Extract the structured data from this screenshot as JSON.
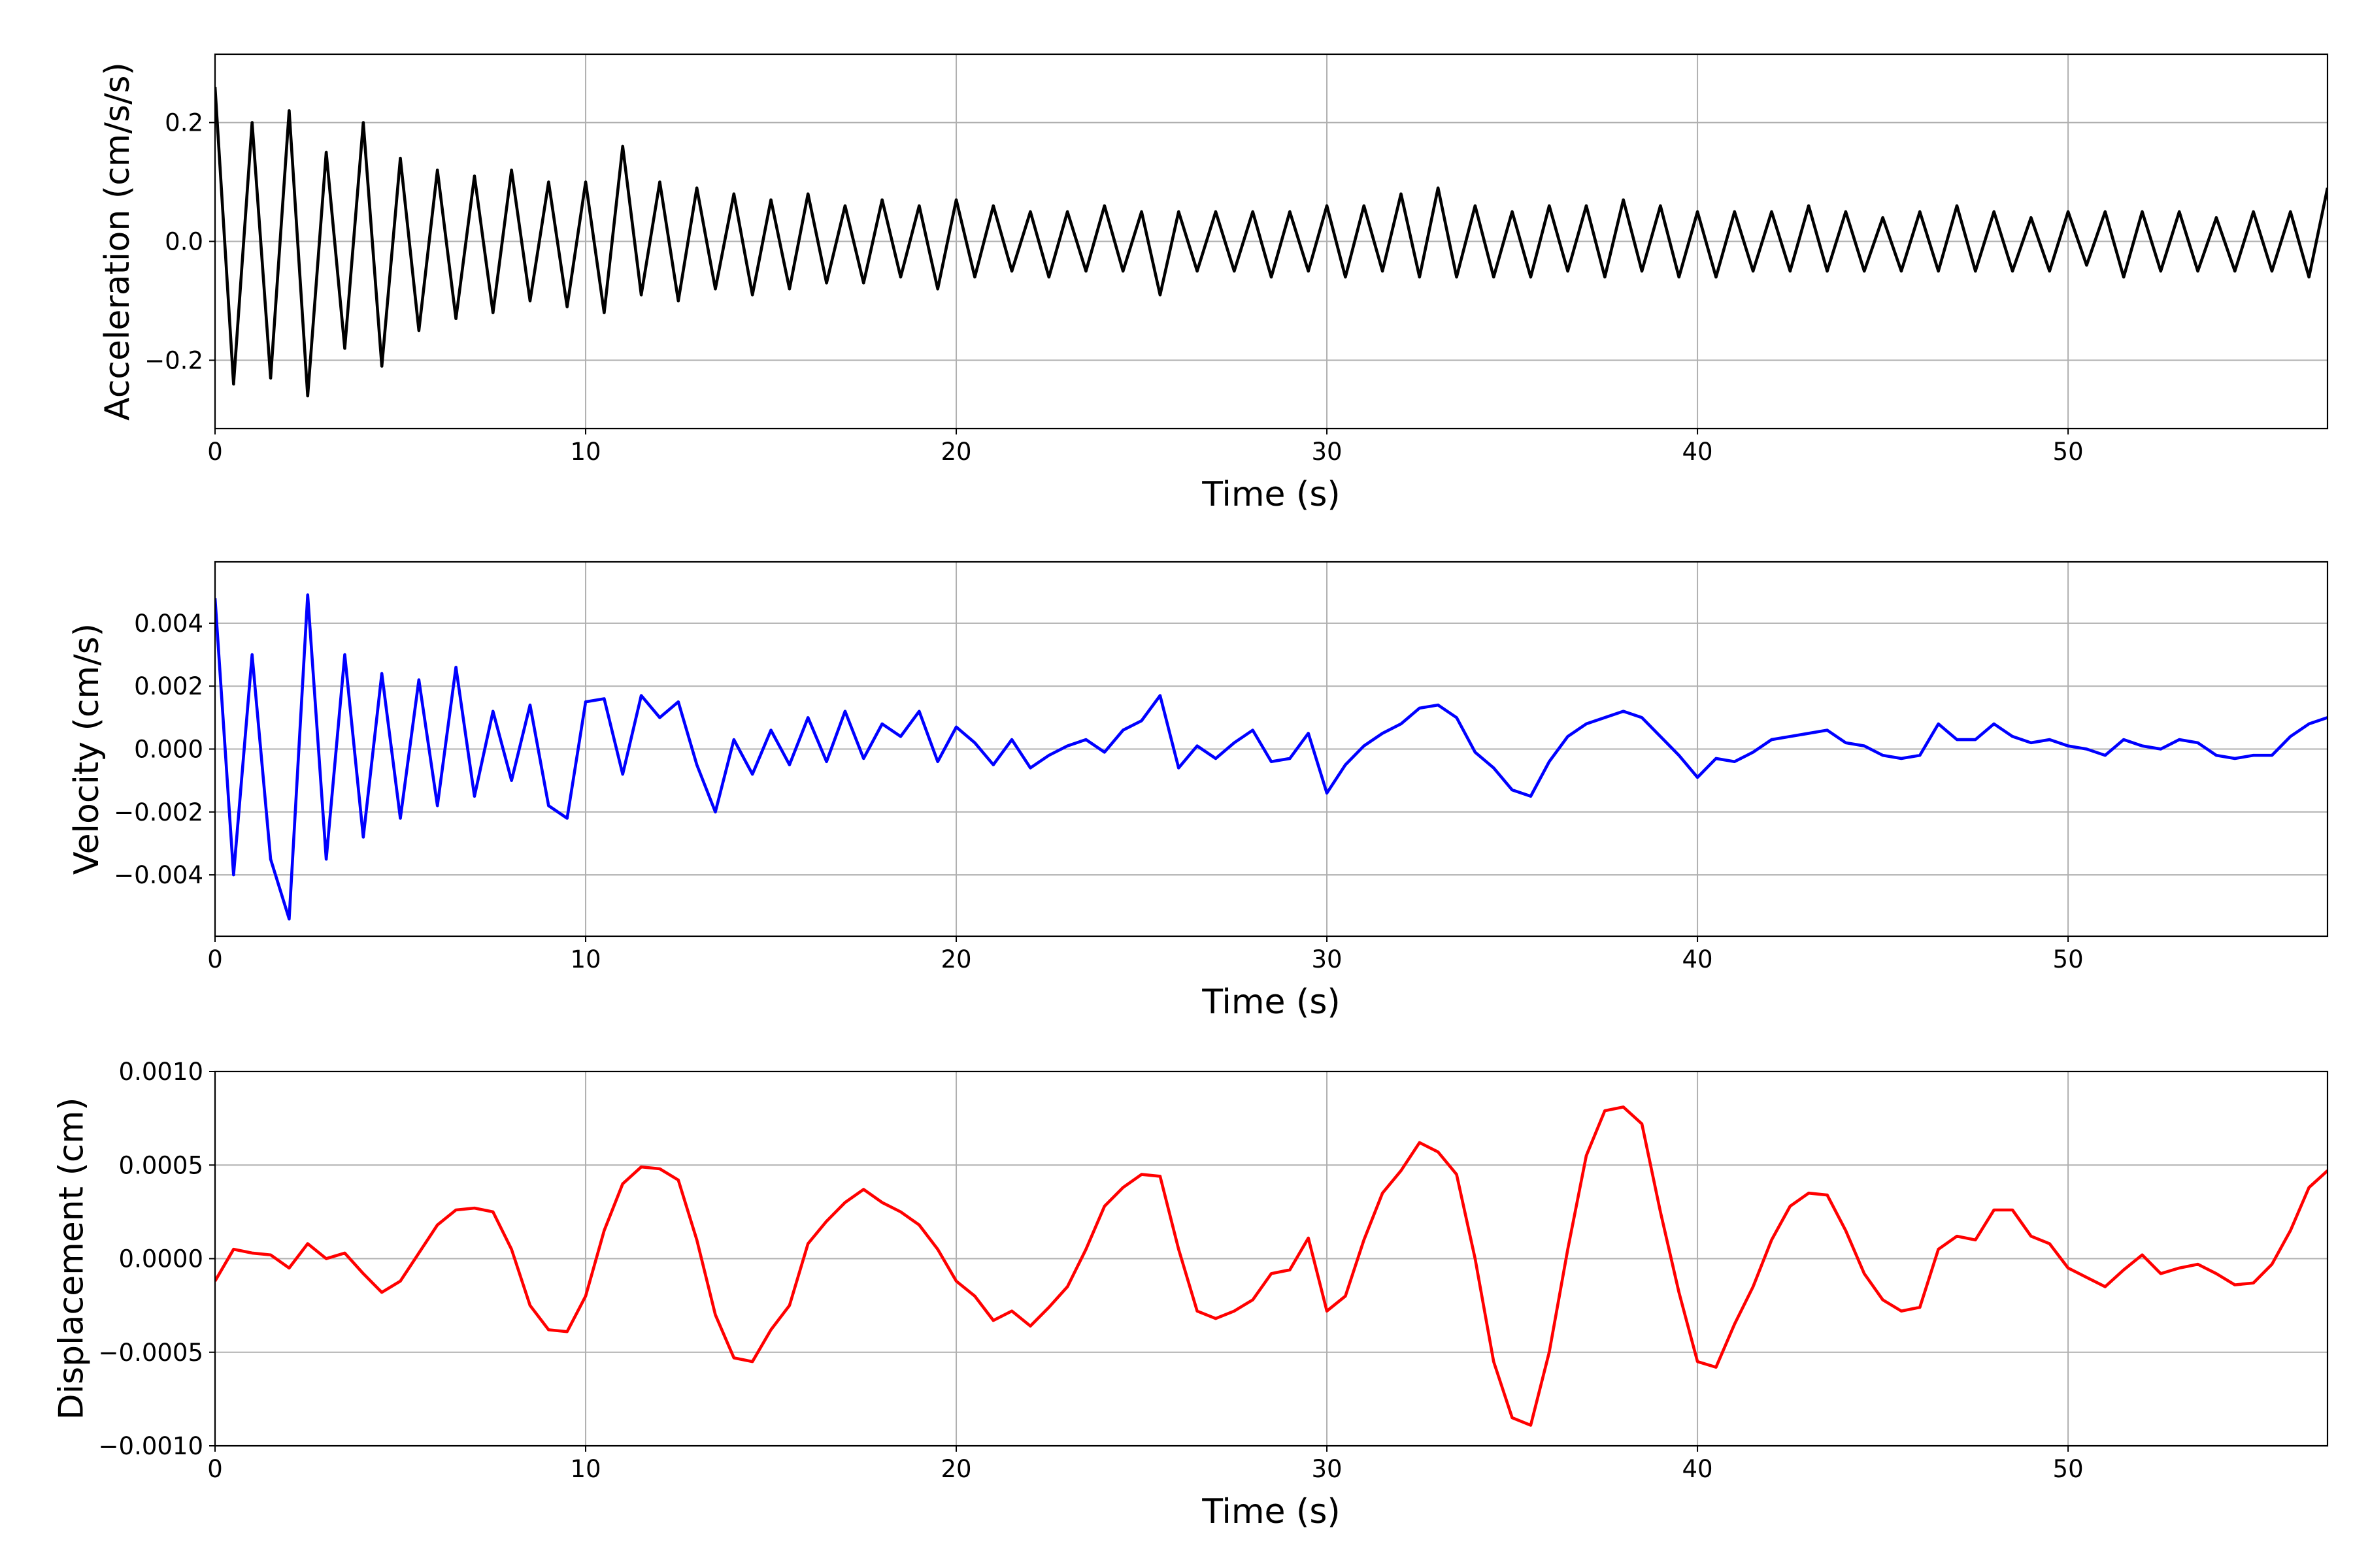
{
  "chart_data": [
    {
      "type": "line",
      "xlabel": "Time (s)",
      "ylabel": "Acceleration (cm/s/s)",
      "grid": true,
      "xlim": [
        0,
        57
      ],
      "xticks": [
        0,
        10,
        20,
        30,
        40,
        50
      ],
      "ylim": [
        -0.315,
        0.315
      ],
      "yticks": [
        {
          "value": -0.2,
          "label": "−0.2"
        },
        {
          "value": 0,
          "label": "0.0"
        },
        {
          "value": 0.2,
          "label": "0.2"
        }
      ],
      "x": [
        0,
        0.5,
        1,
        1.5,
        2,
        2.5,
        3,
        3.5,
        4,
        4.5,
        5,
        5.5,
        6,
        6.5,
        7,
        7.5,
        8,
        8.5,
        9,
        9.5,
        10,
        10.5,
        11,
        11.5,
        12,
        12.5,
        13,
        13.5,
        14,
        14.5,
        15,
        15.5,
        16,
        16.5,
        17,
        17.5,
        18,
        18.5,
        19,
        19.5,
        20,
        20.5,
        21,
        21.5,
        22,
        22.5,
        23,
        23.5,
        24,
        24.5,
        25,
        25.5,
        26,
        26.5,
        27,
        27.5,
        28,
        28.5,
        29,
        29.5,
        30,
        30.5,
        31,
        31.5,
        32,
        32.5,
        33,
        33.5,
        34,
        34.5,
        35,
        35.5,
        36,
        36.5,
        37,
        37.5,
        38,
        38.5,
        39,
        39.5,
        40,
        40.5,
        41,
        41.5,
        42,
        42.5,
        43,
        43.5,
        44,
        44.5,
        45,
        45.5,
        46,
        46.5,
        47,
        47.5,
        48,
        48.5,
        49,
        49.5,
        50,
        50.5,
        51,
        51.5,
        52,
        52.5,
        53,
        53.5,
        54,
        54.5,
        55,
        55.5,
        56,
        56.5,
        57
      ],
      "series": [
        {
          "color": "#000000",
          "values": [
            0.26,
            -0.24,
            0.2,
            -0.23,
            0.22,
            -0.26,
            0.15,
            -0.18,
            0.2,
            -0.21,
            0.14,
            -0.15,
            0.12,
            -0.13,
            0.11,
            -0.12,
            0.12,
            -0.1,
            0.1,
            -0.11,
            0.1,
            -0.12,
            0.16,
            -0.09,
            0.1,
            -0.1,
            0.09,
            -0.08,
            0.08,
            -0.09,
            0.07,
            -0.08,
            0.08,
            -0.07,
            0.06,
            -0.07,
            0.07,
            -0.06,
            0.06,
            -0.08,
            0.07,
            -0.06,
            0.06,
            -0.05,
            0.05,
            -0.06,
            0.05,
            -0.05,
            0.06,
            -0.05,
            0.05,
            -0.09,
            0.05,
            -0.05,
            0.05,
            -0.05,
            0.05,
            -0.06,
            0.05,
            -0.05,
            0.06,
            -0.06,
            0.06,
            -0.05,
            0.08,
            -0.06,
            0.09,
            -0.06,
            0.06,
            -0.06,
            0.05,
            -0.06,
            0.06,
            -0.05,
            0.06,
            -0.06,
            0.07,
            -0.05,
            0.06,
            -0.06,
            0.05,
            -0.06,
            0.05,
            -0.05,
            0.05,
            -0.05,
            0.06,
            -0.05,
            0.05,
            -0.05,
            0.04,
            -0.05,
            0.05,
            -0.05,
            0.06,
            -0.05,
            0.05,
            -0.05,
            0.04,
            -0.05,
            0.05,
            -0.04,
            0.05,
            -0.06,
            0.05,
            -0.05,
            0.05,
            -0.05,
            0.04,
            -0.05,
            0.05,
            -0.05,
            0.05,
            -0.06,
            0.09
          ]
        }
      ]
    },
    {
      "type": "line",
      "xlabel": "Time (s)",
      "ylabel": "Velocity (cm/s)",
      "grid": true,
      "xlim": [
        0,
        57
      ],
      "xticks": [
        0,
        10,
        20,
        30,
        40,
        50
      ],
      "ylim": [
        -0.00595,
        0.00595
      ],
      "yticks": [
        {
          "value": -0.004,
          "label": "−0.004"
        },
        {
          "value": -0.002,
          "label": "−0.002"
        },
        {
          "value": 0,
          "label": "0.000"
        },
        {
          "value": 0.002,
          "label": "0.002"
        },
        {
          "value": 0.004,
          "label": "0.004"
        }
      ],
      "x": [
        0,
        0.5,
        1,
        1.5,
        2,
        2.5,
        3,
        3.5,
        4,
        4.5,
        5,
        5.5,
        6,
        6.5,
        7,
        7.5,
        8,
        8.5,
        9,
        9.5,
        10,
        10.5,
        11,
        11.5,
        12,
        12.5,
        13,
        13.5,
        14,
        14.5,
        15,
        15.5,
        16,
        16.5,
        17,
        17.5,
        18,
        18.5,
        19,
        19.5,
        20,
        20.5,
        21,
        21.5,
        22,
        22.5,
        23,
        23.5,
        24,
        24.5,
        25,
        25.5,
        26,
        26.5,
        27,
        27.5,
        28,
        28.5,
        29,
        29.5,
        30,
        30.5,
        31,
        31.5,
        32,
        32.5,
        33,
        33.5,
        34,
        34.5,
        35,
        35.5,
        36,
        36.5,
        37,
        37.5,
        38,
        38.5,
        39,
        39.5,
        40,
        40.5,
        41,
        41.5,
        42,
        42.5,
        43,
        43.5,
        44,
        44.5,
        45,
        45.5,
        46,
        46.5,
        47,
        47.5,
        48,
        48.5,
        49,
        49.5,
        50,
        50.5,
        51,
        51.5,
        52,
        52.5,
        53,
        53.5,
        54,
        54.5,
        55,
        55.5,
        56,
        56.5,
        57
      ],
      "series": [
        {
          "color": "#0000ff",
          "values": [
            0.0048,
            -0.004,
            0.003,
            -0.0035,
            -0.0054,
            0.0049,
            -0.0035,
            0.003,
            -0.0028,
            0.0024,
            -0.0022,
            0.0022,
            -0.0018,
            0.0026,
            -0.0015,
            0.0012,
            -0.001,
            0.0014,
            -0.0018,
            -0.0022,
            0.0015,
            0.0016,
            -0.0008,
            0.0017,
            0.001,
            0.0015,
            -0.0005,
            -0.002,
            0.0003,
            -0.0008,
            0.0006,
            -0.0005,
            0.001,
            -0.0004,
            0.0012,
            -0.0003,
            0.0008,
            0.0004,
            0.0012,
            -0.0004,
            0.0007,
            0.0002,
            -0.0005,
            0.0003,
            -0.0006,
            -0.0002,
            0.0001,
            0.0003,
            -0.0001,
            0.0006,
            0.0009,
            0.0017,
            -0.0006,
            0.0001,
            -0.0003,
            0.0002,
            0.0006,
            -0.0004,
            -0.0003,
            0.0005,
            -0.0014,
            -0.0005,
            0.0001,
            0.0005,
            0.0008,
            0.0013,
            0.0014,
            0.001,
            -0.0001,
            -0.0006,
            -0.0013,
            -0.0015,
            -0.0004,
            0.0004,
            0.0008,
            0.001,
            0.0012,
            0.001,
            0.0004,
            -0.0002,
            -0.0009,
            -0.0003,
            -0.0004,
            -0.0001,
            0.0003,
            0.0004,
            0.0005,
            0.0006,
            0.0002,
            0.0001,
            -0.0002,
            -0.0003,
            -0.0002,
            0.0008,
            0.0003,
            0.0003,
            0.0008,
            0.0004,
            0.0002,
            0.0003,
            0.0001,
            0,
            -0.0002,
            0.0003,
            0.0001,
            0,
            0.0003,
            0.0002,
            -0.0002,
            -0.0003,
            -0.0002,
            -0.0002,
            0.0004,
            0.0008,
            0.001
          ]
        }
      ]
    },
    {
      "type": "line",
      "xlabel": "Time (s)",
      "ylabel": "Displacement (cm)",
      "grid": true,
      "xlim": [
        0,
        57
      ],
      "xticks": [
        0,
        10,
        20,
        30,
        40,
        50
      ],
      "ylim": [
        -0.001,
        0.001
      ],
      "yticks": [
        {
          "value": -0.001,
          "label": "−0.0010"
        },
        {
          "value": -0.0005,
          "label": "−0.0005"
        },
        {
          "value": 0,
          "label": "0.0000"
        },
        {
          "value": 0.0005,
          "label": "0.0005"
        },
        {
          "value": 0.001,
          "label": "0.0010"
        }
      ],
      "x": [
        0,
        0.5,
        1,
        1.5,
        2,
        2.5,
        3,
        3.5,
        4,
        4.5,
        5,
        5.5,
        6,
        6.5,
        7,
        7.5,
        8,
        8.5,
        9,
        9.5,
        10,
        10.5,
        11,
        11.5,
        12,
        12.5,
        13,
        13.5,
        14,
        14.5,
        15,
        15.5,
        16,
        16.5,
        17,
        17.5,
        18,
        18.5,
        19,
        19.5,
        20,
        20.5,
        21,
        21.5,
        22,
        22.5,
        23,
        23.5,
        24,
        24.5,
        25,
        25.5,
        26,
        26.5,
        27,
        27.5,
        28,
        28.5,
        29,
        29.5,
        30,
        30.5,
        31,
        31.5,
        32,
        32.5,
        33,
        33.5,
        34,
        34.5,
        35,
        35.5,
        36,
        36.5,
        37,
        37.5,
        38,
        38.5,
        39,
        39.5,
        40,
        40.5,
        41,
        41.5,
        42,
        42.5,
        43,
        43.5,
        44,
        44.5,
        45,
        45.5,
        46,
        46.5,
        47,
        47.5,
        48,
        48.5,
        49,
        49.5,
        50,
        50.5,
        51,
        51.5,
        52,
        52.5,
        53,
        53.5,
        54,
        54.5,
        55,
        55.5,
        56,
        56.5,
        57
      ],
      "series": [
        {
          "color": "#ff0000",
          "values": [
            -0.00012,
            5e-05,
            3e-05,
            2e-05,
            -5e-05,
            8e-05,
            0,
            3e-05,
            -8e-05,
            -0.00018,
            -0.00012,
            3e-05,
            0.00018,
            0.00026,
            0.00027,
            0.00025,
            5e-05,
            -0.00025,
            -0.00038,
            -0.00039,
            -0.0002,
            0.00015,
            0.0004,
            0.00049,
            0.00048,
            0.00042,
            0.0001,
            -0.0003,
            -0.00053,
            -0.00055,
            -0.00038,
            -0.00025,
            8e-05,
            0.0002,
            0.0003,
            0.00037,
            0.0003,
            0.00025,
            0.00018,
            5e-05,
            -0.00012,
            -0.0002,
            -0.00033,
            -0.00028,
            -0.00036,
            -0.00026,
            -0.00015,
            5e-05,
            0.00028,
            0.00038,
            0.00045,
            0.00044,
            5e-05,
            -0.00028,
            -0.00032,
            -0.00028,
            -0.00022,
            -8e-05,
            -6e-05,
            0.00011,
            -0.00028,
            -0.0002,
            0.0001,
            0.00035,
            0.00047,
            0.00062,
            0.00057,
            0.00045,
            0,
            -0.00055,
            -0.00085,
            -0.00089,
            -0.0005,
            5e-05,
            0.00055,
            0.00079,
            0.00081,
            0.00072,
            0.00025,
            -0.00018,
            -0.00055,
            -0.00058,
            -0.00035,
            -0.00015,
            0.0001,
            0.00028,
            0.00035,
            0.00034,
            0.00015,
            -8e-05,
            -0.00022,
            -0.00028,
            -0.00026,
            5e-05,
            0.00012,
            0.0001,
            0.00026,
            0.00026,
            0.00012,
            8e-05,
            -5e-05,
            -0.0001,
            -0.00015,
            -6e-05,
            2e-05,
            -8e-05,
            -5e-05,
            -3e-05,
            -8e-05,
            -0.00014,
            -0.00013,
            -3e-05,
            0.00015,
            0.00038,
            0.00047
          ]
        }
      ]
    }
  ]
}
